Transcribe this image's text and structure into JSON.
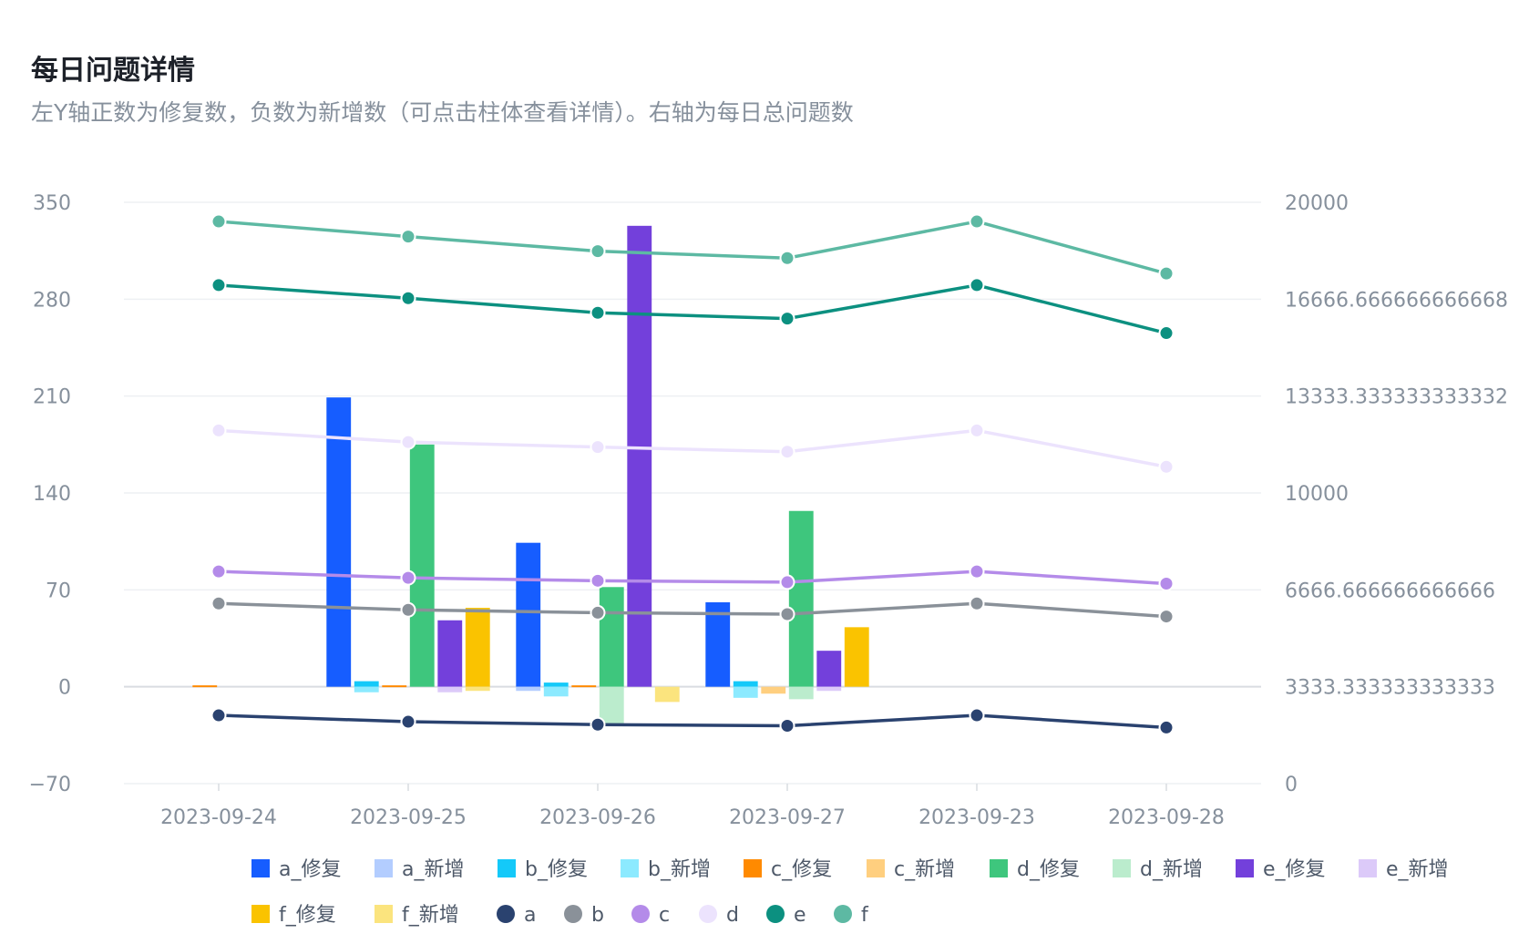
{
  "title": "每日问题详情",
  "subtitle": "左Y轴正数为修复数，负数为新增数（可点击柱体查看详情）。右轴为每日总问题数",
  "chart_data": {
    "type": "bar",
    "categories": [
      "2023-09-24",
      "2023-09-25",
      "2023-09-26",
      "2023-09-27",
      "2023-09-23",
      "2023-09-28"
    ],
    "left_axis": {
      "range": [
        -70,
        350
      ],
      "ticks": [
        350,
        280,
        210,
        140,
        70,
        0,
        -70
      ],
      "tick_labels": [
        "350",
        "280",
        "210",
        "140",
        "70",
        "0",
        "−70"
      ]
    },
    "right_axis": {
      "range": [
        0,
        20000
      ],
      "ticks": [
        20000,
        16666.666666666668,
        13333.333333333332,
        10000,
        6666.666666666666,
        3333.333333333333,
        0
      ],
      "tick_labels": [
        "20000",
        "16666.666666666668",
        "13333.333333333332",
        "10000",
        "6666.666666666666",
        "3333.333333333333",
        "0"
      ]
    },
    "bar_series": [
      {
        "name": "a_修复",
        "color": "#165dff",
        "values": [
          0,
          209,
          104,
          61,
          0,
          0
        ]
      },
      {
        "name": "a_新增",
        "color": "#b3cdff",
        "values": [
          0,
          0,
          -3,
          0,
          0,
          0
        ]
      },
      {
        "name": "b_修复",
        "color": "#14c9f9",
        "values": [
          0,
          4,
          3,
          4,
          0,
          0
        ]
      },
      {
        "name": "b_新增",
        "color": "#8ceaff",
        "values": [
          0,
          -4,
          -7,
          -8,
          0,
          0
        ]
      },
      {
        "name": "c_修复",
        "color": "#ff8a00",
        "values": [
          1,
          1,
          1,
          0,
          0,
          0
        ]
      },
      {
        "name": "c_新增",
        "color": "#ffcf7f",
        "values": [
          0,
          0,
          0,
          -5,
          0,
          0
        ]
      },
      {
        "name": "d_修复",
        "color": "#3ec67d",
        "values": [
          0,
          175,
          72,
          127,
          0,
          0
        ]
      },
      {
        "name": "d_新增",
        "color": "#bbeccd",
        "values": [
          0,
          0,
          -28,
          -9,
          0,
          0
        ]
      },
      {
        "name": "e_修复",
        "color": "#7340db",
        "values": [
          0,
          48,
          333,
          26,
          0,
          0
        ]
      },
      {
        "name": "e_新增",
        "color": "#dccaf9",
        "values": [
          0,
          -4,
          0,
          -3,
          0,
          0
        ]
      },
      {
        "name": "f_修复",
        "color": "#fac300",
        "values": [
          0,
          57,
          0,
          43,
          0,
          0
        ]
      },
      {
        "name": "f_新增",
        "color": "#fbe47e",
        "values": [
          0,
          -3,
          -11,
          0,
          0,
          0
        ]
      }
    ],
    "line_series": [
      {
        "name": "a",
        "color": "#2a426f",
        "values": [
          2350,
          2130,
          2030,
          1990,
          2350,
          1930
        ]
      },
      {
        "name": "b",
        "color": "#8a9199",
        "values": [
          6200,
          5980,
          5880,
          5830,
          6200,
          5750
        ]
      },
      {
        "name": "c",
        "color": "#b48be9",
        "values": [
          7300,
          7080,
          6980,
          6930,
          7300,
          6880
        ]
      },
      {
        "name": "d",
        "color": "#ece3fd",
        "values": [
          12150,
          11750,
          11580,
          11420,
          12150,
          10900
        ]
      },
      {
        "name": "e",
        "color": "#0c9080",
        "values": [
          17150,
          16700,
          16200,
          16000,
          17150,
          15500
        ]
      },
      {
        "name": "f",
        "color": "#5db9a3",
        "values": [
          19340,
          18820,
          18320,
          18080,
          19340,
          17550
        ]
      }
    ],
    "grid": true,
    "legend_position": "bottom"
  }
}
